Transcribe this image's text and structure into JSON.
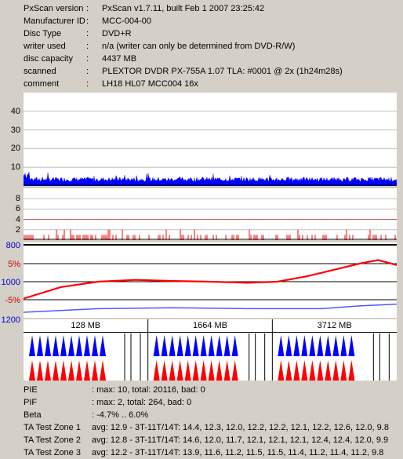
{
  "info": [
    {
      "label": "PxScan version",
      "value": "PxScan v1.7.11, built Feb  1 2007 23:25:42"
    },
    {
      "label": "Manufacturer ID",
      "value": "MCC-004-00"
    },
    {
      "label": "Disc Type",
      "value": "DVD+R"
    },
    {
      "label": "writer used",
      "value": "n/a (writer can only be determined from DVD-R/W)"
    },
    {
      "label": "disc capacity",
      "value": "4437 MB"
    },
    {
      "label": "scanned",
      "value": "PLEXTOR DVDR  PX-755A  1.07 TLA: #0001 @ 2x (1h24m28s)"
    },
    {
      "label": "comment",
      "value": "LH18 HL07 MCC004 16x"
    }
  ],
  "separator": ":",
  "pie_axis": [
    "40",
    "30",
    "20",
    "10"
  ],
  "pif_axis": [
    "8",
    "6",
    "4",
    "2"
  ],
  "jitter_axis": [
    {
      "text": "800",
      "color": "#0000cc"
    },
    {
      "text": "5%",
      "color": "#cc0000"
    },
    {
      "text": "1000",
      "color": "#0000cc"
    },
    {
      "text": "-5%",
      "color": "#cc0000"
    },
    {
      "text": "1200",
      "color": "#0000cc"
    }
  ],
  "zones": [
    "128 MB",
    "1664 MB",
    "3712 MB"
  ],
  "stats": [
    {
      "label": "PIE",
      "value": ": max: 10, total: 20116, bad: 0"
    },
    {
      "label": "PIF",
      "value": ": max: 2, total: 264, bad: 0"
    },
    {
      "label": "Beta",
      "value": ": -4.7% .. 6.0%"
    },
    {
      "label": "TA Test Zone 1",
      "value": "avg: 12.9 - 3T-11T/14T: 14.4, 12.3, 12.0, 12.2, 12.2, 12.1, 12.2, 12.6, 12.0, 9.8"
    },
    {
      "label": "TA Test Zone 2",
      "value": "avg: 12.8 - 3T-11T/14T: 14.6, 12.0, 11.7, 12.1, 12.1, 12.1, 12.4, 12.4, 12.0, 9.9"
    },
    {
      "label": "TA Test Zone 3",
      "value": "avg: 12.2 - 3T-11T/14T: 13.9, 11.6, 11.2, 11.5, 11.5, 11.4, 11.2, 11.4, 11.2, 9.8"
    }
  ],
  "chart_data": [
    {
      "type": "area",
      "ylim": [
        0,
        50
      ],
      "yticks": [
        10,
        20,
        30,
        40
      ],
      "note_series": "PIE",
      "max": 10,
      "total": 20116,
      "color": "#0000ff"
    },
    {
      "type": "bar",
      "ylim": [
        0,
        10
      ],
      "yticks": [
        2,
        4,
        6,
        8
      ],
      "max": 2,
      "total": 264,
      "color": "#ff0000"
    },
    {
      "type": "line",
      "series": [
        {
          "x": [
            0,
            10,
            20,
            30,
            40,
            50,
            60,
            68,
            76,
            84,
            90,
            95,
            100
          ],
          "values": [
            -4.7,
            -1.5,
            0,
            0.5,
            0.2,
            0,
            -0.3,
            0,
            1.5,
            3.5,
            5,
            6,
            4.6
          ],
          "color": "#ff0000"
        },
        {
          "x": [
            0,
            20,
            40,
            60,
            80,
            90,
            100
          ],
          "values": [
            1170,
            1150,
            1145,
            1150,
            1150,
            1135,
            1125
          ],
          "color": "#5555ff"
        }
      ]
    },
    {
      "type": "heatmap",
      "color_top": "#0000ff",
      "color_bottom": "#ff0000",
      "counts": [
        10,
        11,
        10
      ]
    }
  ]
}
